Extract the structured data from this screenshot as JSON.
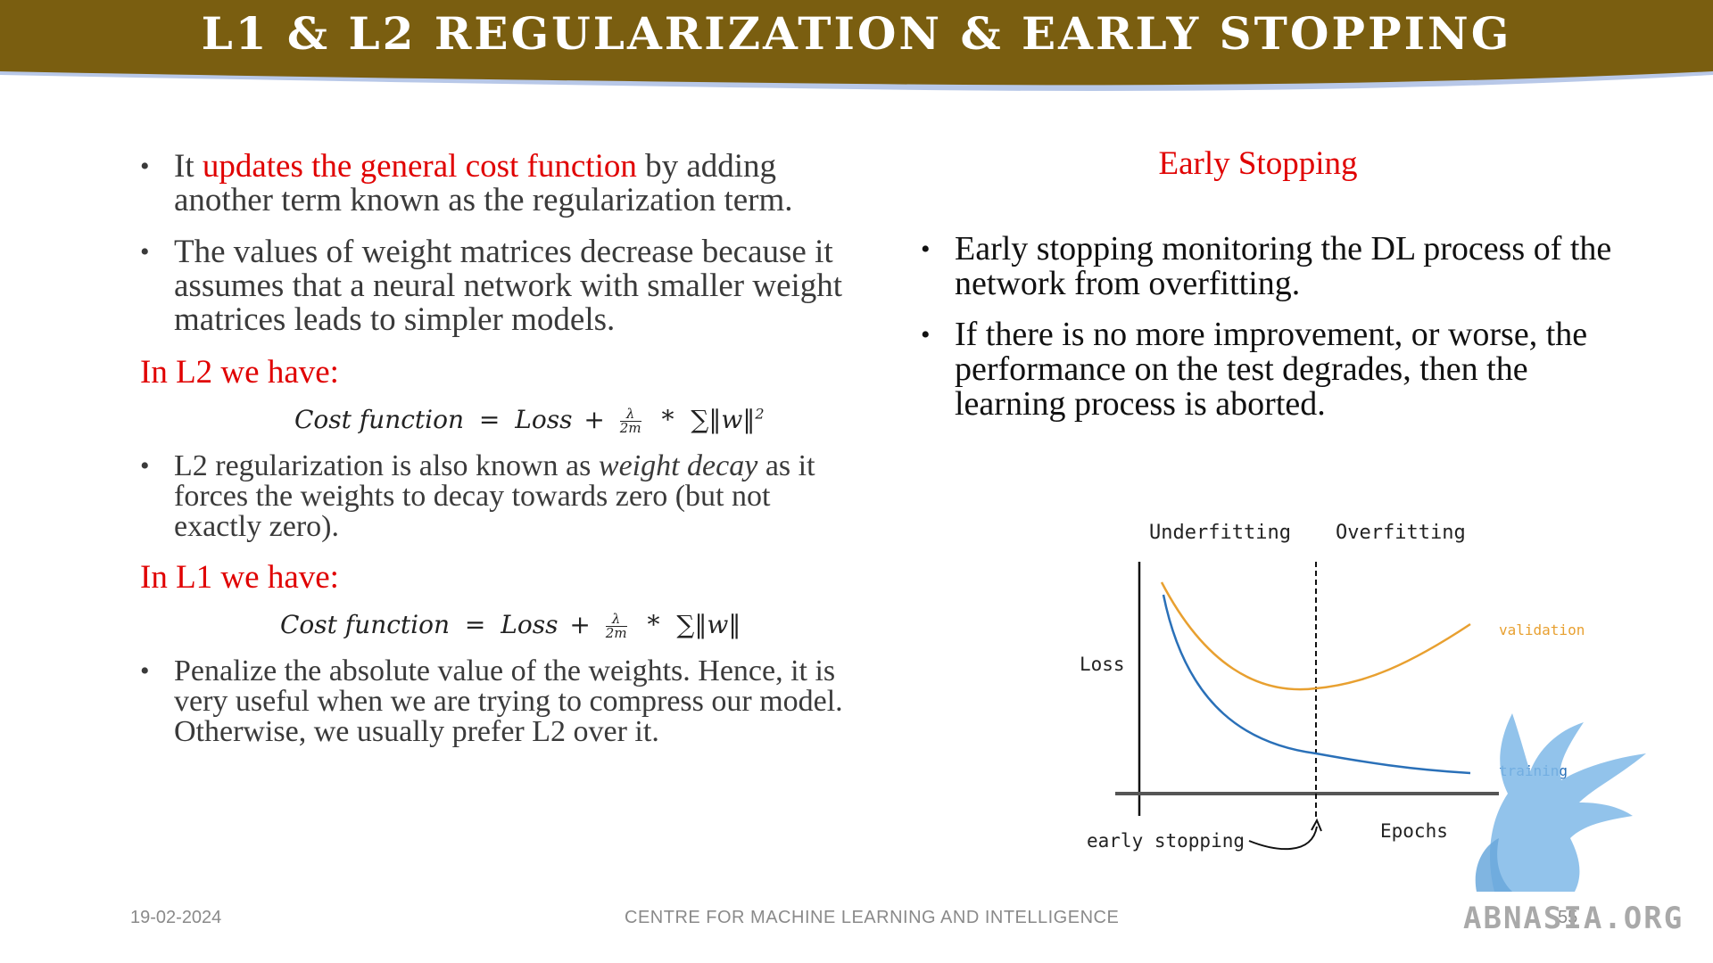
{
  "slide": {
    "title": "L1 & L2 Regularization & Early Stopping",
    "colors": {
      "header": "#7a5e10",
      "header_shadow": "#b8c8e8",
      "accent_red": "#e00000"
    }
  },
  "left": {
    "bullet1": {
      "pre": "It ",
      "highlight": "updates the general cost function",
      "post": " by adding another term known as the regularization term."
    },
    "bullet2": "The values of weight matrices decrease because it assumes that a neural network with smaller weight matrices leads to simpler models.",
    "l2_heading": "In L2 we have:",
    "l2_formula": {
      "lhs": "Cost function",
      "eq": "=",
      "loss": "Loss",
      "plus": "+",
      "num": "λ",
      "den": "2m",
      "times": "*",
      "sum": "∑‖w‖",
      "power": "2"
    },
    "bullet3": {
      "pre": "L2 regularization is also known as ",
      "em": "weight decay",
      "post": " as it forces the weights to decay towards zero (but not exactly zero)."
    },
    "l1_heading": "In L1 we have:",
    "l1_formula": {
      "lhs": "Cost function",
      "eq": "=",
      "loss": "Loss",
      "plus": "+",
      "num": "λ",
      "den": "2m",
      "times": "*",
      "sum": "∑‖w‖"
    },
    "bullet4": "Penalize the absolute value of the weights. Hence, it is very useful when we are trying to compress our model. Otherwise, we usually prefer L2 over it."
  },
  "right": {
    "title": "Early Stopping",
    "bullet1": "Early stopping monitoring the DL process of the network from overfitting.",
    "bullet2": "If there is no more improvement, or worse, the performance on the test degrades, then the learning process is aborted."
  },
  "figure": {
    "underfitting": "Underfitting",
    "overfitting": "Overfitting",
    "loss": "Loss",
    "validation": "validation",
    "training": "training",
    "epochs": "Epochs",
    "early_stopping": "early stopping",
    "colors": {
      "validation": "#e8a030",
      "training": "#2a70b8"
    }
  },
  "footer": {
    "date": "19-02-2024",
    "center": "CENTRE FOR MACHINE LEARNING AND INTELLIGENCE",
    "page": "55"
  },
  "watermark": {
    "text": "ABNASIA.ORG"
  }
}
